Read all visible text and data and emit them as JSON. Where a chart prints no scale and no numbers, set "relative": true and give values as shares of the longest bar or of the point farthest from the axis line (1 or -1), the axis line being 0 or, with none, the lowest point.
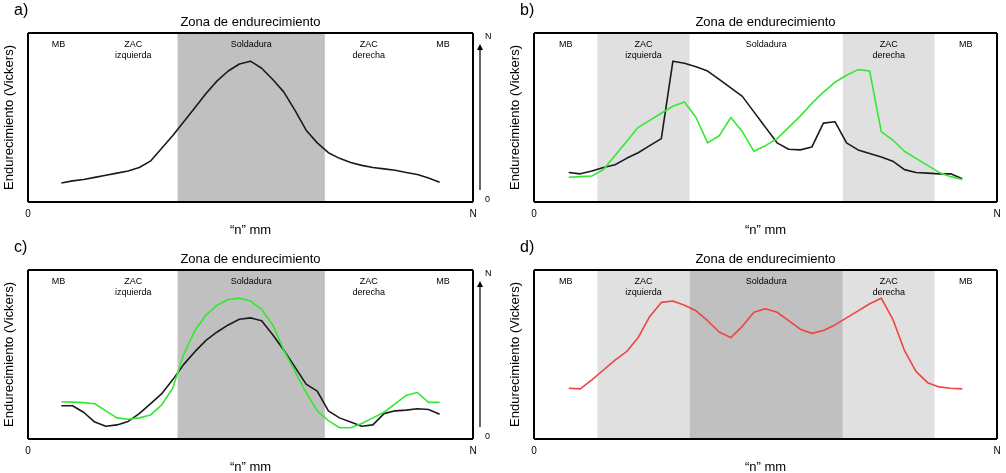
{
  "chart_data": [
    {
      "type": "line",
      "title": "Zona de endurecimiento",
      "xlabel": "“n” mm",
      "ylabel": "Endurecimiento (Vickers)",
      "relative": true,
      "categories": [
        "0",
        null,
        null,
        null,
        null,
        null,
        null,
        null,
        null,
        null,
        null,
        null,
        null,
        null,
        null,
        null,
        null,
        null,
        null,
        null,
        null,
        null,
        null,
        null,
        null,
        null,
        null,
        null,
        null,
        null,
        null,
        null,
        null,
        null,
        null,
        null,
        null,
        null,
        null,
        null,
        "N"
      ],
      "annotations": [
        "a)",
        "MB",
        "ZAC izquierda",
        "Soldadura",
        "ZAC derecha",
        "MB",
        "N",
        "0"
      ],
      "series": [
        {
          "color": "#1a1a1a",
          "values": [
            null,
            null,
            null,
            0.135,
            0.15,
            0.16,
            0.175,
            0.19,
            0.205,
            0.22,
            0.245,
            0.29,
            0.38,
            0.47,
            0.57,
            0.67,
            0.77,
            0.86,
            0.93,
            0.98,
            1,
            0.95,
            0.87,
            0.78,
            0.65,
            0.51,
            0.42,
            0.35,
            0.31,
            0.28,
            0.26,
            0.245,
            0.235,
            0.225,
            0.21,
            0.195,
            0.17,
            0.14,
            null,
            null,
            null
          ]
        }
      ]
    },
    {
      "type": "line",
      "title": "Zona de endurecimiento",
      "xlabel": "“n” mm",
      "ylabel": "Endurecimiento (Vickers)",
      "relative": true,
      "categories": [
        "0",
        null,
        null,
        null,
        null,
        null,
        null,
        null,
        null,
        null,
        null,
        null,
        null,
        null,
        null,
        null,
        null,
        null,
        null,
        null,
        null,
        null,
        null,
        null,
        null,
        null,
        null,
        null,
        null,
        null,
        null,
        null,
        null,
        null,
        null,
        null,
        null,
        null,
        null,
        null,
        "N"
      ],
      "annotations": [
        "b)",
        "MB",
        "ZAC izquierda",
        "Soldadura",
        "ZAC derecha",
        "MB"
      ],
      "series": [
        {
          "color": "#1a1a1a",
          "values": [
            null,
            null,
            null,
            0.21,
            0.2,
            0.22,
            0.245,
            0.265,
            0.31,
            0.35,
            0.4,
            0.45,
            1,
            0.985,
            0.96,
            0.93,
            0.87,
            0.81,
            0.75,
            0.64,
            0.53,
            0.42,
            0.375,
            0.37,
            0.39,
            0.56,
            0.57,
            0.42,
            0.37,
            0.345,
            0.32,
            0.29,
            0.23,
            0.21,
            0.205,
            0.2,
            0.2,
            0.165,
            null,
            null,
            null
          ]
        },
        {
          "color": "#33e833",
          "values": [
            null,
            null,
            null,
            0.176,
            0.18,
            0.185,
            0.23,
            0.33,
            0.43,
            0.53,
            0.58,
            0.63,
            0.68,
            0.71,
            0.6,
            0.42,
            0.47,
            0.6,
            0.5,
            0.36,
            0.4,
            0.45,
            0.53,
            0.61,
            0.7,
            0.78,
            0.85,
            0.9,
            0.94,
            0.93,
            0.5,
            0.44,
            0.36,
            0.31,
            0.26,
            0.21,
            0.18,
            0.16,
            null,
            null,
            null
          ]
        }
      ]
    },
    {
      "type": "line",
      "title": "Zona de endurecimiento",
      "xlabel": "“n” mm",
      "ylabel": "Endurecimiento (Vickers)",
      "relative": true,
      "categories": [
        "0",
        null,
        null,
        null,
        null,
        null,
        null,
        null,
        null,
        null,
        null,
        null,
        null,
        null,
        null,
        null,
        null,
        null,
        null,
        null,
        null,
        null,
        null,
        null,
        null,
        null,
        null,
        null,
        null,
        null,
        null,
        null,
        null,
        null,
        null,
        null,
        null,
        null,
        null,
        null,
        "N"
      ],
      "annotations": [
        "c)",
        "MB",
        "ZAC izquierda",
        "Soldadura",
        "ZAC derecha",
        "MB",
        "N",
        "0"
      ],
      "series": [
        {
          "color": "#1a1a1a",
          "values": [
            null,
            null,
            null,
            0.236,
            0.236,
            0.19,
            0.12,
            0.09,
            0.1,
            0.125,
            0.18,
            0.25,
            0.32,
            0.42,
            0.53,
            0.62,
            0.7,
            0.76,
            0.81,
            0.85,
            0.86,
            0.84,
            0.74,
            0.63,
            0.51,
            0.39,
            0.34,
            0.2,
            0.15,
            0.12,
            0.09,
            0.1,
            0.18,
            0.2,
            0.205,
            0.215,
            0.21,
            0.175,
            null,
            null,
            null
          ]
        },
        {
          "color": "#33e833",
          "values": [
            null,
            null,
            null,
            0.264,
            0.262,
            0.258,
            0.25,
            0.2,
            0.15,
            0.14,
            0.15,
            0.17,
            0.24,
            0.36,
            0.6,
            0.77,
            0.88,
            0.95,
            0.99,
            1,
            0.98,
            0.92,
            0.81,
            0.63,
            0.48,
            0.33,
            0.2,
            0.13,
            0.08,
            0.08,
            0.11,
            0.15,
            0.19,
            0.25,
            0.31,
            0.33,
            0.26,
            0.26,
            null,
            null,
            null
          ]
        }
      ]
    },
    {
      "type": "line",
      "title": "Zona de endurecimiento",
      "xlabel": "“n” mm",
      "ylabel": "Endurecimiento (Vickers)",
      "relative": true,
      "categories": [
        "0",
        null,
        null,
        null,
        null,
        null,
        null,
        null,
        null,
        null,
        null,
        null,
        null,
        null,
        null,
        null,
        null,
        null,
        null,
        null,
        null,
        null,
        null,
        null,
        null,
        null,
        null,
        null,
        null,
        null,
        null,
        null,
        null,
        null,
        null,
        null,
        null,
        null,
        null,
        null,
        "N"
      ],
      "annotations": [
        "d)",
        "MB",
        "ZAC izquierda",
        "Soldadura",
        "ZAC derecha",
        "MB"
      ],
      "series": [
        {
          "color": "#ee4444",
          "values": [
            null,
            null,
            null,
            0.36,
            0.356,
            0.42,
            0.49,
            0.56,
            0.62,
            0.72,
            0.87,
            0.97,
            0.98,
            0.95,
            0.91,
            0.84,
            0.76,
            0.72,
            0.8,
            0.9,
            0.925,
            0.9,
            0.84,
            0.78,
            0.75,
            0.77,
            0.81,
            0.86,
            0.91,
            0.96,
            1,
            0.85,
            0.63,
            0.48,
            0.4,
            0.37,
            0.36,
            0.356,
            null,
            null,
            null
          ]
        }
      ]
    }
  ]
}
